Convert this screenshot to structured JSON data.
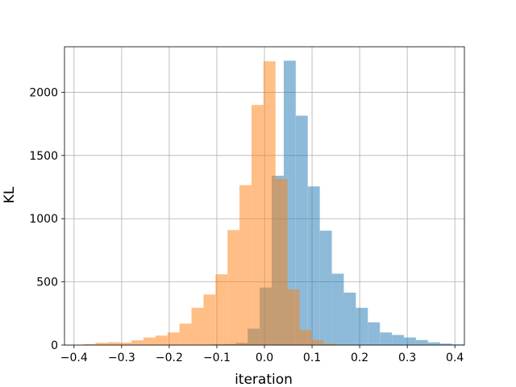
{
  "chart_data": {
    "type": "histogram",
    "title": "",
    "xlabel": "iteration",
    "ylabel": "KL",
    "xlim": [
      -0.42,
      0.42
    ],
    "ylim": [
      0,
      2360
    ],
    "xticks": [
      -0.4,
      -0.3,
      -0.2,
      -0.1,
      0.0,
      0.1,
      0.2,
      0.3,
      0.4
    ],
    "xtick_labels": [
      "−0.4",
      "−0.3",
      "−0.2",
      "−0.1",
      "0.0",
      "0.1",
      "0.2",
      "0.3",
      "0.4"
    ],
    "yticks": [
      0,
      500,
      1000,
      1500,
      2000
    ],
    "ytick_labels": [
      "0",
      "500",
      "1000",
      "1500",
      "2000"
    ],
    "grid": true,
    "legend": null,
    "series": [
      {
        "color": "#1f77b4",
        "opacity": 0.5,
        "bin_width": 0.02525,
        "bin_start": -0.111,
        "values": [
          5,
          8,
          18,
          130,
          455,
          1340,
          2250,
          1815,
          1255,
          905,
          565,
          415,
          295,
          180,
          100,
          80,
          60,
          40,
          22,
          12,
          5
        ]
      },
      {
        "color": "#ff7f0e",
        "opacity": 0.5,
        "bin_width": 0.0252,
        "bin_start": -0.38,
        "values": [
          8,
          18,
          22,
          20,
          38,
          60,
          75,
          100,
          170,
          295,
          400,
          560,
          910,
          1265,
          1900,
          2245,
          1315,
          440,
          120,
          40,
          10,
          4
        ]
      }
    ]
  }
}
